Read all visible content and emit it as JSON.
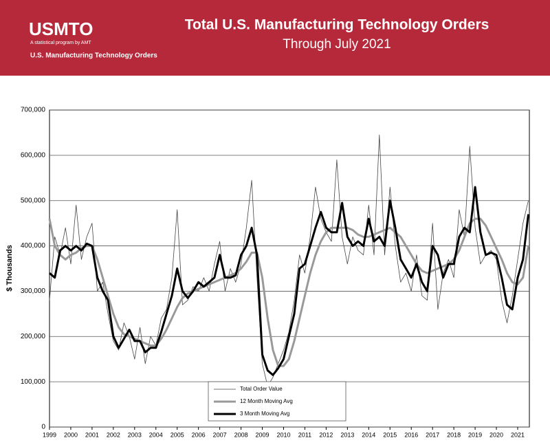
{
  "header": {
    "logo": "USMTO",
    "tagline": "A statistical program by AMT",
    "program": "U.S. Manufacturing Technology Orders"
  },
  "chart_data": {
    "type": "line",
    "title": "Total U.S. Manufacturing Technology Orders",
    "subtitle": "Through July 2021",
    "ylabel": "$ Thousands",
    "x": [
      1999,
      1999.25,
      1999.5,
      1999.75,
      2000,
      2000.25,
      2000.5,
      2000.75,
      2001,
      2001.25,
      2001.5,
      2001.75,
      2002,
      2002.25,
      2002.5,
      2002.75,
      2003,
      2003.25,
      2003.5,
      2003.75,
      2004,
      2004.25,
      2004.5,
      2004.75,
      2005,
      2005.25,
      2005.5,
      2005.75,
      2006,
      2006.25,
      2006.5,
      2006.75,
      2007,
      2007.25,
      2007.5,
      2007.75,
      2008,
      2008.25,
      2008.5,
      2008.75,
      2009,
      2009.25,
      2009.5,
      2009.75,
      2010,
      2010.25,
      2010.5,
      2010.75,
      2011,
      2011.25,
      2011.5,
      2011.75,
      2012,
      2012.25,
      2012.5,
      2012.75,
      2013,
      2013.25,
      2013.5,
      2013.75,
      2014,
      2014.25,
      2014.5,
      2014.75,
      2015,
      2015.25,
      2015.5,
      2015.75,
      2016,
      2016.25,
      2016.5,
      2016.75,
      2017,
      2017.25,
      2017.5,
      2017.75,
      2018,
      2018.25,
      2018.5,
      2018.75,
      2019,
      2019.25,
      2019.5,
      2019.75,
      2020,
      2020.25,
      2020.5,
      2020.75,
      2021,
      2021.25,
      2021.5
    ],
    "series": [
      {
        "name": "Total Order Value",
        "color": "#444444",
        "width": 0.8,
        "values": [
          280000,
          420000,
          380000,
          440000,
          360000,
          490000,
          370000,
          420000,
          450000,
          300000,
          320000,
          250000,
          190000,
          170000,
          230000,
          200000,
          150000,
          220000,
          140000,
          200000,
          180000,
          240000,
          260000,
          330000,
          480000,
          270000,
          280000,
          310000,
          300000,
          330000,
          300000,
          360000,
          410000,
          300000,
          350000,
          320000,
          360000,
          440000,
          545000,
          330000,
          140000,
          90000,
          110000,
          140000,
          170000,
          210000,
          280000,
          380000,
          340000,
          420000,
          530000,
          460000,
          430000,
          410000,
          590000,
          420000,
          360000,
          420000,
          390000,
          380000,
          490000,
          380000,
          645000,
          380000,
          530000,
          400000,
          320000,
          340000,
          300000,
          380000,
          290000,
          280000,
          450000,
          260000,
          340000,
          370000,
          330000,
          480000,
          420000,
          620000,
          440000,
          360000,
          380000,
          390000,
          370000,
          280000,
          230000,
          290000,
          370000,
          450000,
          500000
        ]
      },
      {
        "name": "12 Month Moving Avg",
        "color": "#999999",
        "width": 3,
        "values": [
          460000,
          400000,
          380000,
          370000,
          380000,
          385000,
          395000,
          400000,
          400000,
          370000,
          330000,
          290000,
          250000,
          220000,
          205000,
          200000,
          195000,
          190000,
          185000,
          180000,
          180000,
          195000,
          215000,
          240000,
          265000,
          285000,
          295000,
          300000,
          305000,
          310000,
          315000,
          320000,
          325000,
          330000,
          335000,
          340000,
          350000,
          365000,
          385000,
          385000,
          330000,
          240000,
          170000,
          135000,
          135000,
          150000,
          190000,
          240000,
          290000,
          340000,
          380000,
          410000,
          430000,
          440000,
          440000,
          440000,
          440000,
          435000,
          425000,
          420000,
          420000,
          425000,
          430000,
          435000,
          440000,
          430000,
          420000,
          400000,
          380000,
          360000,
          345000,
          340000,
          345000,
          350000,
          355000,
          360000,
          370000,
          390000,
          420000,
          450000,
          460000,
          460000,
          445000,
          420000,
          395000,
          370000,
          340000,
          320000,
          315000,
          330000,
          400000
        ]
      },
      {
        "name": "3 Month Moving Avg",
        "color": "#000000",
        "width": 3,
        "values": [
          340000,
          330000,
          390000,
          400000,
          390000,
          400000,
          390000,
          405000,
          400000,
          330000,
          300000,
          280000,
          200000,
          175000,
          195000,
          215000,
          190000,
          190000,
          165000,
          175000,
          175000,
          210000,
          250000,
          290000,
          350000,
          300000,
          285000,
          300000,
          320000,
          310000,
          320000,
          330000,
          380000,
          330000,
          330000,
          335000,
          380000,
          400000,
          440000,
          380000,
          160000,
          125000,
          115000,
          130000,
          150000,
          200000,
          250000,
          350000,
          360000,
          400000,
          440000,
          475000,
          440000,
          430000,
          430000,
          495000,
          420000,
          400000,
          410000,
          400000,
          460000,
          410000,
          420000,
          400000,
          500000,
          440000,
          370000,
          350000,
          330000,
          360000,
          320000,
          300000,
          400000,
          380000,
          330000,
          360000,
          360000,
          420000,
          440000,
          430000,
          530000,
          430000,
          380000,
          385000,
          380000,
          330000,
          270000,
          260000,
          330000,
          370000,
          470000
        ]
      }
    ],
    "xlim": [
      1999,
      2021.55
    ],
    "xticks": [
      1999,
      2000,
      2001,
      2002,
      2003,
      2004,
      2005,
      2006,
      2007,
      2008,
      2009,
      2010,
      2011,
      2012,
      2013,
      2014,
      2015,
      2016,
      2017,
      2018,
      2019,
      2020,
      2021
    ],
    "ylim": [
      0,
      700000
    ],
    "yticks": [
      0,
      {
        "value": 100000,
        "label": "100,000"
      },
      {
        "value": 200000,
        "label": "200,000"
      },
      {
        "value": 300000,
        "label": "300,000"
      },
      {
        "value": 400000,
        "label": "400,000"
      },
      {
        "value": 500000,
        "label": "500,000"
      },
      {
        "value": 600000,
        "label": "600,000"
      },
      {
        "value": 700000,
        "label": "700,000"
      }
    ],
    "grid": true,
    "legend": "bottom"
  }
}
